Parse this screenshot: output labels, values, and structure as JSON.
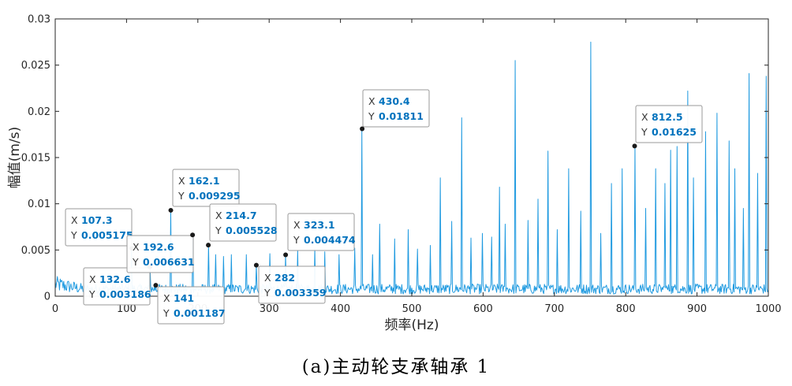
{
  "chart_data": {
    "type": "line",
    "xlabel": "频率(Hz)",
    "ylabel": "幅值(m/s)",
    "xlim": [
      0,
      1000
    ],
    "ylim": [
      0,
      0.03
    ],
    "xticks": [
      "0",
      "100",
      "200",
      "300",
      "400",
      "500",
      "600",
      "700",
      "800",
      "900",
      "1000"
    ],
    "yticks": [
      "0",
      "0.005",
      "0.01",
      "0.015",
      "0.02",
      "0.025",
      "0.03"
    ],
    "grid": false,
    "series_color": "#1f9ae0",
    "noise_floor": 0.0012,
    "peaks": [
      {
        "x": 107.3,
        "y": 0.005175
      },
      {
        "x": 132.6,
        "y": 0.003186
      },
      {
        "x": 141,
        "y": 0.001187
      },
      {
        "x": 162.1,
        "y": 0.009295
      },
      {
        "x": 192.6,
        "y": 0.006631
      },
      {
        "x": 214.7,
        "y": 0.005528
      },
      {
        "x": 282,
        "y": 0.003359
      },
      {
        "x": 323.1,
        "y": 0.004474
      },
      {
        "x": 430.4,
        "y": 0.01811
      },
      {
        "x": 812.5,
        "y": 0.01625
      },
      {
        "x": 225,
        "y": 0.0045
      },
      {
        "x": 236,
        "y": 0.0043
      },
      {
        "x": 247,
        "y": 0.0045
      },
      {
        "x": 268,
        "y": 0.0045
      },
      {
        "x": 301,
        "y": 0.0046
      },
      {
        "x": 340,
        "y": 0.005
      },
      {
        "x": 364,
        "y": 0.0052
      },
      {
        "x": 378,
        "y": 0.0048
      },
      {
        "x": 398,
        "y": 0.0045
      },
      {
        "x": 420,
        "y": 0.0052
      },
      {
        "x": 445,
        "y": 0.0045
      },
      {
        "x": 455,
        "y": 0.0078
      },
      {
        "x": 476,
        "y": 0.0062
      },
      {
        "x": 495,
        "y": 0.0072
      },
      {
        "x": 508,
        "y": 0.0051
      },
      {
        "x": 526,
        "y": 0.0055
      },
      {
        "x": 540,
        "y": 0.0128
      },
      {
        "x": 556,
        "y": 0.0081
      },
      {
        "x": 570,
        "y": 0.0193
      },
      {
        "x": 583,
        "y": 0.0063
      },
      {
        "x": 599,
        "y": 0.0068
      },
      {
        "x": 612,
        "y": 0.0064
      },
      {
        "x": 623,
        "y": 0.0118
      },
      {
        "x": 631,
        "y": 0.0078
      },
      {
        "x": 645,
        "y": 0.0255
      },
      {
        "x": 663,
        "y": 0.0082
      },
      {
        "x": 677,
        "y": 0.0105
      },
      {
        "x": 691,
        "y": 0.0157
      },
      {
        "x": 704,
        "y": 0.0072
      },
      {
        "x": 720,
        "y": 0.0138
      },
      {
        "x": 737,
        "y": 0.0092
      },
      {
        "x": 751,
        "y": 0.0275
      },
      {
        "x": 765,
        "y": 0.0068
      },
      {
        "x": 780,
        "y": 0.0122
      },
      {
        "x": 795,
        "y": 0.0138
      },
      {
        "x": 828,
        "y": 0.0095
      },
      {
        "x": 842,
        "y": 0.0138
      },
      {
        "x": 855,
        "y": 0.0122
      },
      {
        "x": 863,
        "y": 0.0158
      },
      {
        "x": 872,
        "y": 0.0162
      },
      {
        "x": 887,
        "y": 0.0222
      },
      {
        "x": 895,
        "y": 0.0128
      },
      {
        "x": 912,
        "y": 0.0178
      },
      {
        "x": 928,
        "y": 0.0198
      },
      {
        "x": 945,
        "y": 0.0168
      },
      {
        "x": 953,
        "y": 0.0138
      },
      {
        "x": 965,
        "y": 0.0095
      },
      {
        "x": 973,
        "y": 0.0241
      },
      {
        "x": 985,
        "y": 0.0133
      },
      {
        "x": 997,
        "y": 0.0238
      }
    ],
    "datatips": [
      {
        "x": "107.3",
        "y": "0.005175"
      },
      {
        "x": "132.6",
        "y": "0.003186"
      },
      {
        "x": "141",
        "y": "0.001187"
      },
      {
        "x": "162.1",
        "y": "0.009295"
      },
      {
        "x": "192.6",
        "y": "0.006631"
      },
      {
        "x": "214.7",
        "y": "0.005528"
      },
      {
        "x": "282",
        "y": "0.003359"
      },
      {
        "x": "323.1",
        "y": "0.004474"
      },
      {
        "x": "430.4",
        "y": "0.01811"
      },
      {
        "x": "812.5",
        "y": "0.01625"
      }
    ],
    "caption": "(a)主动轮支承轴承 1"
  }
}
